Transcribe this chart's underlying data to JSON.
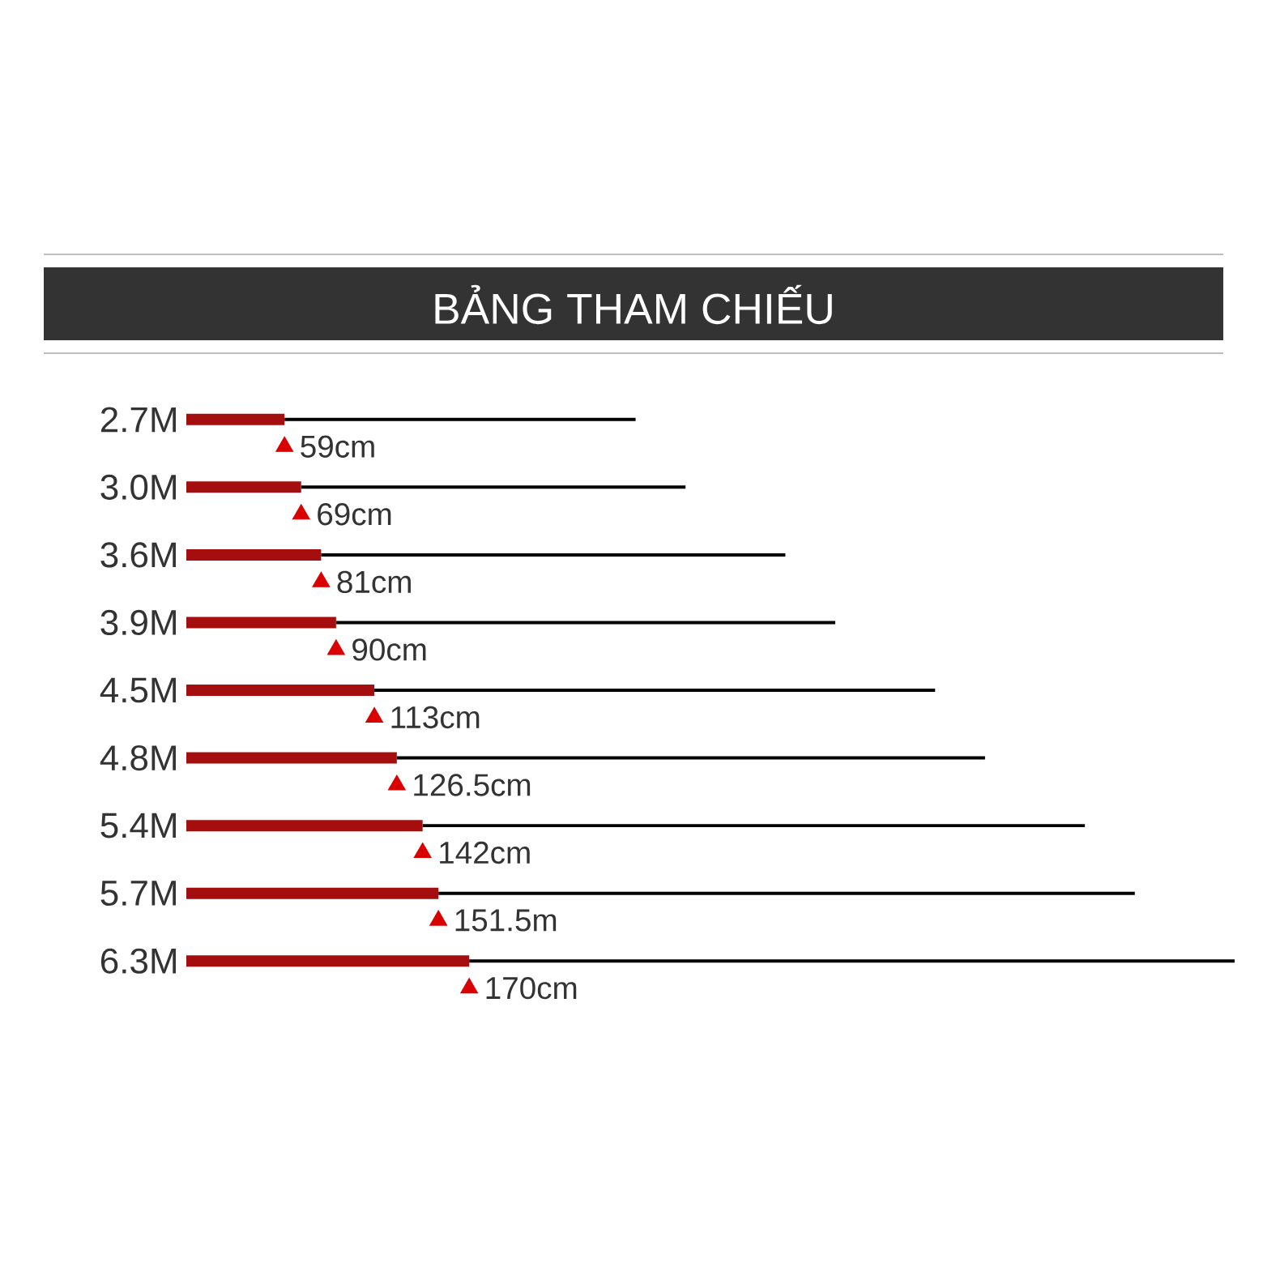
{
  "chart_data": {
    "type": "bar",
    "orientation": "horizontal",
    "stacked": true,
    "title": "BẢNG THAM CHIẾU",
    "categories": [
      "2.7M",
      "3.0M",
      "3.6M",
      "3.9M",
      "4.5M",
      "4.8M",
      "5.4M",
      "5.7M",
      "6.3M"
    ],
    "xlim": [
      0,
      630
    ],
    "tick_labels": "y",
    "series": [
      {
        "color": "#a50e0e",
        "values": [
          59,
          69,
          81,
          90,
          113,
          126.5,
          142,
          151.5,
          170
        ],
        "value_labels": [
          "59cm",
          "69cm",
          "81cm",
          "90cm",
          "113cm",
          "126.5cm",
          "142cm",
          "151.5m",
          "170cm"
        ]
      },
      {
        "color": "#000000",
        "values": [
          211,
          231,
          279,
          300,
          337,
          353.5,
          398,
          418.5,
          460
        ]
      },
      {
        "type": "scatter",
        "marker": "triangle",
        "color": "#d90000",
        "values": [
          59,
          69,
          81,
          90,
          113,
          126.5,
          142,
          151.5,
          170
        ]
      }
    ]
  }
}
